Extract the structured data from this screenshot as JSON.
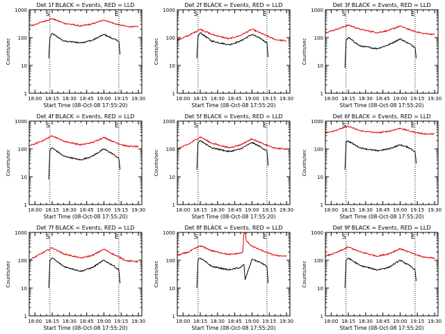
{
  "colors": {
    "events": "#000000",
    "lld": "#e00000",
    "axes": "#000000",
    "background": "#ffffff"
  },
  "chart_data": [
    {
      "type": "line",
      "title": "Det 1f BLACK = Events, RED = LLD",
      "xlabel": "Start Time (08-Oct-08 17:55:20)",
      "ylabel": "Counts/sec",
      "yscale": "log",
      "ylim": [
        1,
        1000
      ],
      "xlim": [
        "18:00",
        "19:30"
      ],
      "x_ticks": [
        "18:00",
        "18:15",
        "18:30",
        "18:45",
        "19:00",
        "19:15",
        "19:30"
      ],
      "y_ticks": [
        "1",
        "10",
        "100",
        "1000"
      ],
      "marker_labels": [
        "S",
        "E"
      ],
      "markers_x": [
        "18:13",
        "19:13"
      ],
      "series": [
        {
          "name": "Events",
          "color": "#000000",
          "x": [
            "18:12",
            "18:13",
            "18:15",
            "18:25",
            "18:40",
            "18:50",
            "19:00",
            "19:08",
            "19:13",
            "19:14"
          ],
          "y": [
            18,
            100,
            140,
            75,
            65,
            80,
            130,
            90,
            75,
            25
          ]
        },
        {
          "name": "LLD",
          "color": "#e00000",
          "x": [
            "17:55",
            "18:05",
            "18:15",
            "18:25",
            "18:40",
            "18:50",
            "19:00",
            "19:10",
            "19:20",
            "19:30"
          ],
          "y": [
            250,
            350,
            480,
            330,
            260,
            310,
            430,
            310,
            250,
            240
          ]
        }
      ]
    },
    {
      "type": "line",
      "title": "Det 2f BLACK = Events, RED = LLD",
      "xlabel": "Start Time (08-Oct-08 17:55:20)",
      "ylabel": "Counts/sec",
      "yscale": "log",
      "ylim": [
        1,
        1000
      ],
      "xlim": [
        "18:00",
        "19:30"
      ],
      "x_ticks": [
        "18:00",
        "18:15",
        "18:30",
        "18:45",
        "19:00",
        "19:15",
        "19:30"
      ],
      "y_ticks": [
        "1",
        "10",
        "100",
        "1000"
      ],
      "marker_labels": [
        "S",
        "E"
      ],
      "markers_x": [
        "18:13",
        "19:13"
      ],
      "series": [
        {
          "name": "Events",
          "color": "#000000",
          "x": [
            "18:12",
            "18:13",
            "18:15",
            "18:25",
            "18:40",
            "18:50",
            "19:00",
            "19:08",
            "19:13",
            "19:14"
          ],
          "y": [
            18,
            110,
            150,
            75,
            55,
            75,
            130,
            90,
            65,
            20
          ]
        },
        {
          "name": "LLD",
          "color": "#e00000",
          "x": [
            "17:55",
            "18:05",
            "18:15",
            "18:25",
            "18:40",
            "18:50",
            "19:00",
            "19:10",
            "19:20",
            "19:30"
          ],
          "y": [
            80,
            120,
            200,
            130,
            90,
            120,
            200,
            130,
            85,
            75
          ]
        }
      ]
    },
    {
      "type": "line",
      "title": "Det 3f BLACK = Events, RED = LLD",
      "xlabel": "Start Time (08-Oct-08 17:55:20)",
      "ylabel": "Counts/sec",
      "yscale": "log",
      "ylim": [
        1,
        1000
      ],
      "xlim": [
        "18:00",
        "19:30"
      ],
      "x_ticks": [
        "18:00",
        "18:15",
        "18:30",
        "18:45",
        "19:00",
        "19:15",
        "19:30"
      ],
      "y_ticks": [
        "1",
        "10",
        "100",
        "1000"
      ],
      "marker_labels": [
        "S",
        "E"
      ],
      "markers_x": [
        "18:13",
        "19:13"
      ],
      "series": [
        {
          "name": "Events",
          "color": "#000000",
          "x": [
            "18:12",
            "18:13",
            "18:15",
            "18:25",
            "18:40",
            "18:50",
            "19:00",
            "19:08",
            "19:13",
            "19:14"
          ],
          "y": [
            8,
            80,
            100,
            50,
            40,
            55,
            90,
            60,
            45,
            18
          ]
        },
        {
          "name": "LLD",
          "color": "#e00000",
          "x": [
            "17:55",
            "18:05",
            "18:15",
            "18:25",
            "18:40",
            "18:50",
            "19:00",
            "19:10",
            "19:20",
            "19:30"
          ],
          "y": [
            150,
            200,
            280,
            200,
            150,
            180,
            260,
            180,
            140,
            130
          ]
        }
      ]
    },
    {
      "type": "line",
      "title": "Det 4f BLACK = Events, RED = LLD",
      "xlabel": "Start Time (08-Oct-08 17:55:20)",
      "ylabel": "Counts/sec",
      "yscale": "log",
      "ylim": [
        1,
        1000
      ],
      "xlim": [
        "18:00",
        "19:30"
      ],
      "x_ticks": [
        "18:00",
        "18:15",
        "18:30",
        "18:45",
        "19:00",
        "19:15",
        "19:30"
      ],
      "y_ticks": [
        "1",
        "10",
        "100",
        "1000"
      ],
      "marker_labels": [
        "S",
        "E"
      ],
      "markers_x": [
        "18:13",
        "19:13"
      ],
      "series": [
        {
          "name": "Events",
          "color": "#000000",
          "x": [
            "18:12",
            "18:13",
            "18:15",
            "18:25",
            "18:40",
            "18:50",
            "19:00",
            "19:08",
            "19:13",
            "19:14"
          ],
          "y": [
            8,
            90,
            110,
            55,
            40,
            55,
            100,
            65,
            45,
            18
          ]
        },
        {
          "name": "LLD",
          "color": "#e00000",
          "x": [
            "17:55",
            "18:05",
            "18:15",
            "18:25",
            "18:40",
            "18:50",
            "19:00",
            "19:10",
            "19:20",
            "19:30"
          ],
          "y": [
            130,
            180,
            300,
            190,
            140,
            170,
            260,
            170,
            125,
            120
          ]
        }
      ]
    },
    {
      "type": "line",
      "title": "Det 5f BLACK = Events, RED = LLD",
      "xlabel": "Start Time (08-Oct-08 17:55:20)",
      "ylabel": "Counts/sec",
      "yscale": "log",
      "ylim": [
        1,
        1000
      ],
      "xlim": [
        "18:00",
        "19:30"
      ],
      "x_ticks": [
        "18:00",
        "18:15",
        "18:30",
        "18:45",
        "19:00",
        "19:15",
        "19:30"
      ],
      "y_ticks": [
        "1",
        "10",
        "100",
        "1000"
      ],
      "marker_labels": [
        "S",
        "E"
      ],
      "markers_x": [
        "18:13",
        "19:13"
      ],
      "series": [
        {
          "name": "Events",
          "color": "#000000",
          "x": [
            "18:12",
            "18:13",
            "18:15",
            "18:25",
            "18:40",
            "18:50",
            "19:00",
            "19:08",
            "19:13",
            "19:14"
          ],
          "y": [
            18,
            160,
            200,
            110,
            80,
            100,
            170,
            115,
            85,
            25
          ]
        },
        {
          "name": "LLD",
          "color": "#e00000",
          "x": [
            "17:55",
            "18:05",
            "18:15",
            "18:25",
            "18:40",
            "18:50",
            "19:00",
            "19:10",
            "19:20",
            "19:30"
          ],
          "y": [
            100,
            150,
            270,
            160,
            110,
            140,
            230,
            150,
            105,
            100
          ]
        }
      ]
    },
    {
      "type": "line",
      "title": "Det 6f BLACK = Events, RED = LLD",
      "xlabel": "Start Time (08-Oct-08 17:55:20)",
      "ylabel": "Counts/sec",
      "yscale": "log",
      "ylim": [
        1,
        1000
      ],
      "xlim": [
        "18:00",
        "19:30"
      ],
      "x_ticks": [
        "18:00",
        "18:15",
        "18:30",
        "18:45",
        "19:00",
        "19:15",
        "19:30"
      ],
      "y_ticks": [
        "1",
        "10",
        "100",
        "1000"
      ],
      "marker_labels": [
        "S",
        "E"
      ],
      "markers_x": [
        "18:13",
        "19:13"
      ],
      "series": [
        {
          "name": "Events",
          "color": "#000000",
          "x": [
            "18:12",
            "18:13",
            "18:15",
            "18:25",
            "18:40",
            "18:50",
            "19:00",
            "19:08",
            "19:13",
            "19:14"
          ],
          "y": [
            18,
            180,
            190,
            110,
            85,
            100,
            140,
            110,
            80,
            30
          ]
        },
        {
          "name": "LLD",
          "color": "#e00000",
          "x": [
            "17:55",
            "18:05",
            "18:15",
            "18:25",
            "18:40",
            "18:50",
            "19:00",
            "19:10",
            "19:20",
            "19:30"
          ],
          "y": [
            370,
            480,
            650,
            450,
            380,
            430,
            550,
            420,
            350,
            340
          ]
        }
      ]
    },
    {
      "type": "line",
      "title": "Det 7f BLACK = Events, RED = LLD",
      "xlabel": "Start Time (08-Oct-08 17:55:20)",
      "ylabel": "Counts/sec",
      "yscale": "log",
      "ylim": [
        1,
        1000
      ],
      "xlim": [
        "18:00",
        "19:30"
      ],
      "x_ticks": [
        "18:00",
        "18:15",
        "18:30",
        "18:45",
        "19:00",
        "19:15",
        "19:30"
      ],
      "y_ticks": [
        "1",
        "10",
        "100",
        "1000"
      ],
      "marker_labels": [
        "S",
        "E"
      ],
      "markers_x": [
        "18:13",
        "19:13"
      ],
      "series": [
        {
          "name": "Events",
          "color": "#000000",
          "x": [
            "18:12",
            "18:13",
            "18:15",
            "18:25",
            "18:40",
            "18:50",
            "19:00",
            "19:08",
            "19:13",
            "19:14"
          ],
          "y": [
            10,
            100,
            120,
            60,
            40,
            55,
            100,
            65,
            45,
            15
          ]
        },
        {
          "name": "LLD",
          "color": "#e00000",
          "x": [
            "17:55",
            "18:05",
            "18:15",
            "18:25",
            "18:40",
            "18:50",
            "19:00",
            "19:10",
            "19:20",
            "19:30"
          ],
          "y": [
            100,
            170,
            280,
            170,
            120,
            150,
            250,
            150,
            95,
            90
          ]
        }
      ]
    },
    {
      "type": "line",
      "title": "Det 8f BLACK = Events, RED = LLD",
      "xlabel": "Start Time (08-Oct-08 17:55:20)",
      "ylabel": "Counts/sec",
      "yscale": "log",
      "ylim": [
        1,
        1000
      ],
      "xlim": [
        "18:00",
        "19:30"
      ],
      "x_ticks": [
        "18:00",
        "18:15",
        "18:30",
        "18:45",
        "19:00",
        "19:15",
        "19:30"
      ],
      "y_ticks": [
        "1",
        "10",
        "100",
        "1000"
      ],
      "marker_labels": [
        "S",
        "E"
      ],
      "markers_x": [
        "18:13",
        "19:13"
      ],
      "series": [
        {
          "name": "Events",
          "color": "#000000",
          "x": [
            "18:12",
            "18:13",
            "18:15",
            "18:25",
            "18:40",
            "18:50",
            "18:53",
            "18:54",
            "19:00",
            "19:08",
            "19:13",
            "19:14"
          ],
          "y": [
            10,
            100,
            120,
            60,
            45,
            55,
            70,
            20,
            110,
            80,
            60,
            15
          ]
        },
        {
          "name": "LLD",
          "color": "#e00000",
          "x": [
            "17:55",
            "18:05",
            "18:15",
            "18:25",
            "18:40",
            "18:50",
            "18:52",
            "18:53",
            "18:54",
            "18:55",
            "19:00",
            "19:10",
            "19:20",
            "19:30"
          ],
          "y": [
            150,
            200,
            330,
            220,
            160,
            180,
            200,
            1000,
            1000,
            500,
            320,
            210,
            150,
            140
          ]
        }
      ]
    },
    {
      "type": "line",
      "title": "Det 9f BLACK = Events, RED = LLD",
      "xlabel": "Start Time (08-Oct-08 17:55:20)",
      "ylabel": "Counts/sec",
      "yscale": "log",
      "ylim": [
        1,
        1000
      ],
      "xlim": [
        "18:00",
        "19:30"
      ],
      "x_ticks": [
        "18:00",
        "18:15",
        "18:30",
        "18:45",
        "19:00",
        "19:15",
        "19:30"
      ],
      "y_ticks": [
        "1",
        "10",
        "100",
        "1000"
      ],
      "marker_labels": [
        "S",
        "E"
      ],
      "markers_x": [
        "18:13",
        "19:13"
      ],
      "series": [
        {
          "name": "Events",
          "color": "#000000",
          "x": [
            "18:12",
            "18:13",
            "18:15",
            "18:25",
            "18:40",
            "18:50",
            "19:00",
            "19:08",
            "19:13",
            "19:14"
          ],
          "y": [
            10,
            100,
            120,
            65,
            45,
            55,
            100,
            65,
            45,
            18
          ]
        },
        {
          "name": "LLD",
          "color": "#e00000",
          "x": [
            "17:55",
            "18:05",
            "18:15",
            "18:25",
            "18:40",
            "18:50",
            "19:00",
            "19:10",
            "19:20",
            "19:30"
          ],
          "y": [
            140,
            190,
            300,
            200,
            140,
            170,
            260,
            180,
            130,
            120
          ]
        }
      ]
    }
  ]
}
